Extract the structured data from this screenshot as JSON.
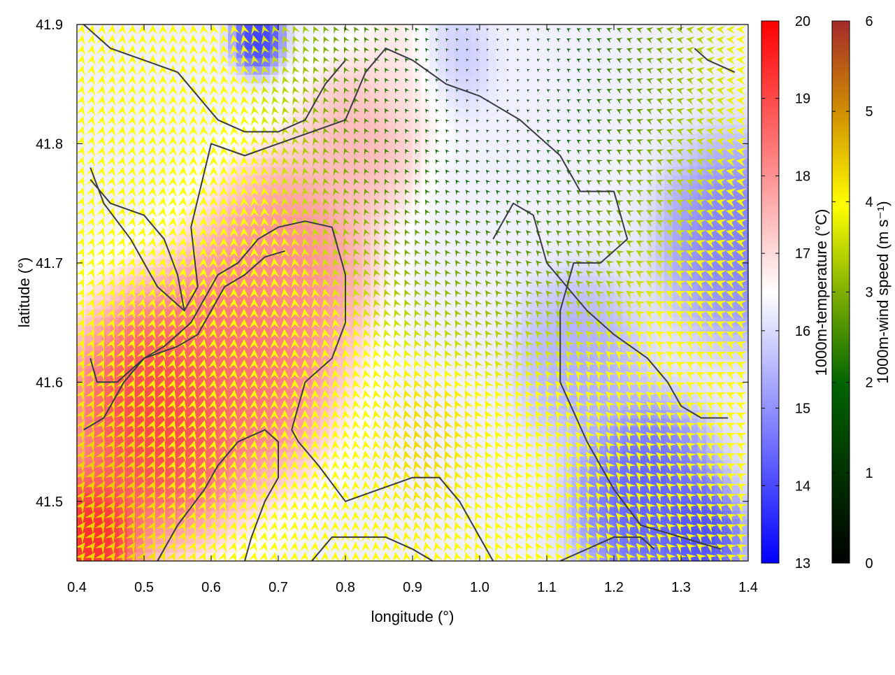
{
  "chart_data": {
    "type": "heatmap",
    "title": "",
    "xlabel": "longitude (°)",
    "ylabel": "latitude (°)",
    "xlim": [
      0.4,
      1.4
    ],
    "ylim": [
      41.45,
      41.9
    ],
    "xticks": [
      0.4,
      0.5,
      0.6,
      0.7,
      0.8,
      0.9,
      1.0,
      1.1,
      1.2,
      1.3,
      1.4
    ],
    "xtick_labels": [
      "0.4",
      "0.5",
      "0.6",
      "0.7",
      "0.8",
      "0.9",
      "1.0",
      "1.1",
      "1.2",
      "1.3",
      "1.4"
    ],
    "yticks": [
      41.5,
      41.6,
      41.7,
      41.8,
      41.9
    ],
    "ytick_labels": [
      "41.5",
      "41.6",
      "41.7",
      "41.8",
      "41.9"
    ],
    "grid": false,
    "legend": "none",
    "temperature": {
      "label": "1000m-temperature (°C)",
      "range": [
        13,
        20
      ],
      "ticks": [
        "13",
        "14",
        "15",
        "16",
        "17",
        "18",
        "19",
        "20"
      ],
      "colors": [
        "#0000ff",
        "#ffffff",
        "#ff0000"
      ],
      "blobs": [
        {
          "lon": 0.42,
          "lat": 41.47,
          "t": 19.8,
          "r": 0.05
        },
        {
          "lon": 0.52,
          "lat": 41.57,
          "t": 19.4,
          "r": 0.09
        },
        {
          "lon": 0.65,
          "lat": 41.62,
          "t": 18.7,
          "r": 0.09
        },
        {
          "lon": 0.72,
          "lat": 41.7,
          "t": 18.2,
          "r": 0.08
        },
        {
          "lon": 0.82,
          "lat": 41.8,
          "t": 17.6,
          "r": 0.06
        },
        {
          "lon": 0.9,
          "lat": 41.86,
          "t": 17.0,
          "r": 0.05
        },
        {
          "lon": 0.67,
          "lat": 41.89,
          "t": 13.6,
          "r": 0.025
        },
        {
          "lon": 0.95,
          "lat": 41.87,
          "t": 15.6,
          "r": 0.04
        },
        {
          "lon": 1.25,
          "lat": 41.5,
          "t": 14.1,
          "r": 0.07
        },
        {
          "lon": 1.33,
          "lat": 41.47,
          "t": 13.8,
          "r": 0.04
        },
        {
          "lon": 1.38,
          "lat": 41.72,
          "t": 14.6,
          "r": 0.07
        },
        {
          "lon": 1.15,
          "lat": 41.62,
          "t": 15.3,
          "r": 0.06
        }
      ]
    },
    "wind": {
      "label": "1000m-wind speed (m s⁻¹)",
      "range": [
        0,
        6
      ],
      "ticks": [
        "0",
        "1",
        "2",
        "3",
        "4",
        "5",
        "6"
      ],
      "colors": [
        "#000000",
        "#006400",
        "#80b000",
        "#ffff00",
        "#d09000",
        "#a52a2a"
      ]
    },
    "contours": [
      [
        [
          0.42,
          41.78
        ],
        [
          0.44,
          41.75
        ],
        [
          0.48,
          41.72
        ],
        [
          0.52,
          41.68
        ],
        [
          0.56,
          41.66
        ],
        [
          0.58,
          41.68
        ],
        [
          0.57,
          41.73
        ],
        [
          0.6,
          41.8
        ],
        [
          0.65,
          41.79
        ],
        [
          0.7,
          41.8
        ],
        [
          0.75,
          41.81
        ],
        [
          0.8,
          41.82
        ],
        [
          0.83,
          41.86
        ],
        [
          0.86,
          41.88
        ],
        [
          0.9,
          41.87
        ],
        [
          0.95,
          41.85
        ],
        [
          1.0,
          41.84
        ],
        [
          1.06,
          41.82
        ],
        [
          1.12,
          41.79
        ],
        [
          1.15,
          41.76
        ],
        [
          1.2,
          41.76
        ],
        [
          1.22,
          41.72
        ],
        [
          1.18,
          41.7
        ],
        [
          1.14,
          41.7
        ],
        [
          1.12,
          41.66
        ],
        [
          1.12,
          41.6
        ],
        [
          1.16,
          41.55
        ],
        [
          1.2,
          41.51
        ],
        [
          1.24,
          41.48
        ],
        [
          1.3,
          41.47
        ],
        [
          1.36,
          41.46
        ]
      ],
      [
        [
          0.41,
          41.56
        ],
        [
          0.44,
          41.57
        ],
        [
          0.47,
          41.6
        ],
        [
          0.5,
          41.62
        ],
        [
          0.53,
          41.63
        ],
        [
          0.57,
          41.65
        ],
        [
          0.61,
          41.69
        ],
        [
          0.64,
          41.7
        ],
        [
          0.67,
          41.72
        ],
        [
          0.7,
          41.73
        ],
        [
          0.74,
          41.735
        ],
        [
          0.78,
          41.73
        ],
        [
          0.8,
          41.69
        ],
        [
          0.8,
          41.65
        ],
        [
          0.78,
          41.62
        ],
        [
          0.74,
          41.6
        ],
        [
          0.72,
          41.56
        ],
        [
          0.73,
          41.55
        ],
        [
          0.76,
          41.53
        ],
        [
          0.8,
          41.5
        ],
        [
          0.85,
          41.51
        ],
        [
          0.9,
          41.52
        ],
        [
          0.94,
          41.52
        ],
        [
          0.97,
          41.5
        ],
        [
          1.0,
          41.47
        ],
        [
          1.02,
          41.45
        ]
      ],
      [
        [
          0.52,
          41.45
        ],
        [
          0.55,
          41.48
        ],
        [
          0.59,
          41.51
        ],
        [
          0.61,
          41.53
        ],
        [
          0.64,
          41.55
        ],
        [
          0.68,
          41.56
        ],
        [
          0.7,
          41.55
        ],
        [
          0.7,
          41.52
        ],
        [
          0.68,
          41.5
        ],
        [
          0.66,
          41.47
        ],
        [
          0.65,
          41.45
        ]
      ],
      [
        [
          0.42,
          41.62
        ],
        [
          0.43,
          41.6
        ],
        [
          0.46,
          41.6
        ],
        [
          0.5,
          41.62
        ],
        [
          0.55,
          41.63
        ],
        [
          0.58,
          41.64
        ],
        [
          0.6,
          41.66
        ],
        [
          0.62,
          41.68
        ],
        [
          0.65,
          41.69
        ],
        [
          0.68,
          41.705
        ],
        [
          0.71,
          41.71
        ]
      ],
      [
        [
          0.75,
          41.45
        ],
        [
          0.78,
          41.47
        ],
        [
          0.82,
          41.47
        ],
        [
          0.86,
          41.47
        ],
        [
          0.9,
          41.46
        ],
        [
          0.93,
          41.45
        ]
      ],
      [
        [
          0.42,
          41.77
        ],
        [
          0.45,
          41.75
        ],
        [
          0.5,
          41.74
        ],
        [
          0.53,
          41.72
        ],
        [
          0.55,
          41.69
        ],
        [
          0.56,
          41.66
        ]
      ],
      [
        [
          0.41,
          41.9
        ],
        [
          0.45,
          41.88
        ],
        [
          0.5,
          41.87
        ],
        [
          0.55,
          41.86
        ],
        [
          0.58,
          41.84
        ],
        [
          0.61,
          41.82
        ],
        [
          0.65,
          41.81
        ],
        [
          0.7,
          41.81
        ],
        [
          0.74,
          41.82
        ],
        [
          0.77,
          41.85
        ],
        [
          0.8,
          41.87
        ]
      ],
      [
        [
          1.02,
          41.72
        ],
        [
          1.05,
          41.75
        ],
        [
          1.08,
          41.74
        ],
        [
          1.1,
          41.7
        ],
        [
          1.13,
          41.68
        ],
        [
          1.16,
          41.66
        ],
        [
          1.2,
          41.64
        ],
        [
          1.25,
          41.62
        ],
        [
          1.28,
          41.6
        ],
        [
          1.3,
          41.58
        ],
        [
          1.33,
          41.57
        ],
        [
          1.37,
          41.57
        ]
      ],
      [
        [
          1.12,
          41.45
        ],
        [
          1.16,
          41.46
        ],
        [
          1.2,
          41.47
        ],
        [
          1.24,
          41.47
        ],
        [
          1.26,
          41.46
        ]
      ],
      [
        [
          1.32,
          41.88
        ],
        [
          1.34,
          41.87
        ],
        [
          1.38,
          41.86
        ]
      ]
    ]
  }
}
